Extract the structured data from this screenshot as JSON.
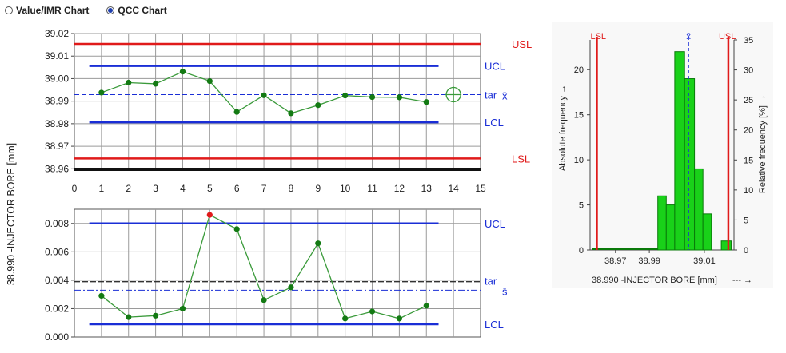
{
  "radios": [
    {
      "label": "Value/IMR Chart",
      "selected": false
    },
    {
      "label": "QCC Chart",
      "selected": true
    }
  ],
  "y_axis_label": "38.990 -INJECTOR BORE [mm]",
  "colors": {
    "spec": "#e01a1a",
    "control": "#1a2ed6",
    "data": "#3a9a3a",
    "point": "#137a13",
    "grid": "#9a9a9a",
    "bar": "#19d119",
    "alarm": "#e01a1a"
  },
  "chart_data": [
    {
      "type": "line",
      "name": "x-chart",
      "x": [
        1,
        2,
        3,
        4,
        5,
        6,
        7,
        8,
        9,
        10,
        11,
        12,
        13
      ],
      "values": [
        38.9938,
        38.9982,
        38.9977,
        39.0031,
        38.9989,
        38.9852,
        38.9926,
        38.9846,
        38.9882,
        38.9925,
        38.9918,
        38.9917,
        38.9896
      ],
      "xlim": [
        0,
        15
      ],
      "ylim": [
        38.9594,
        39.02
      ],
      "xticks": [
        "0",
        "1",
        "2",
        "3",
        "4",
        "5",
        "6",
        "7",
        "8",
        "9",
        "10",
        "11",
        "12",
        "13",
        "14",
        "15"
      ],
      "yticks": [
        "38.96",
        "38.97",
        "38.98",
        "38.99",
        "39.00",
        "39.01",
        "39.02"
      ],
      "lines": [
        {
          "label": "USL",
          "value": 39.0154,
          "kind": "spec"
        },
        {
          "label": "UCL",
          "value": 39.0056,
          "kind": "control"
        },
        {
          "label": "tar",
          "value": 38.9929,
          "kind": "target"
        },
        {
          "label": "LCL",
          "value": 38.9806,
          "kind": "control"
        },
        {
          "label": "LSL",
          "value": 38.9646,
          "kind": "spec"
        }
      ],
      "mean_symbol": "x̄",
      "target_label": "tar"
    },
    {
      "type": "line",
      "name": "s-chart",
      "x": [
        1,
        2,
        3,
        4,
        5,
        6,
        7,
        8,
        9,
        10,
        11,
        12,
        13
      ],
      "values": [
        0.0029,
        0.0014,
        0.0015,
        0.002,
        0.0086,
        0.0076,
        0.0026,
        0.0035,
        0.0066,
        0.0013,
        0.0018,
        0.0013,
        0.0022
      ],
      "alarm_points": [
        5
      ],
      "xlim": [
        0,
        15
      ],
      "ylim": [
        0,
        0.009
      ],
      "yticks": [
        "0.000",
        "0.002",
        "0.004",
        "0.006",
        "0.008"
      ],
      "lines": [
        {
          "label": "UCL",
          "value": 0.008,
          "kind": "control"
        },
        {
          "label": "tar",
          "value": 0.0039,
          "kind": "target"
        },
        {
          "label": "LCL",
          "value": 0.0009,
          "kind": "control"
        }
      ],
      "mean_value": 0.0033,
      "mean_symbol": "s̄",
      "target_label": "tar"
    },
    {
      "type": "bar",
      "name": "histogram",
      "bins": [
        {
          "x0": 38.975,
          "x1": 38.978,
          "count": 6
        },
        {
          "x0": 38.978,
          "x1": 38.981,
          "count": 5
        },
        {
          "x0": 38.981,
          "x1": 38.9845,
          "count": 22
        },
        {
          "x0": 38.9845,
          "x1": 38.988,
          "count": 19
        },
        {
          "x0": 38.988,
          "x1": 38.991,
          "count": 9
        },
        {
          "x0": 38.991,
          "x1": 38.994,
          "count": 4
        },
        {
          "x0": 38.9975,
          "x1": 39.001,
          "count": 1
        }
      ],
      "xlim": [
        38.951,
        39.002
      ],
      "xticks": [
        {
          "v": 38.96,
          "l": "38.97"
        },
        {
          "v": 38.972,
          "l": "38.99"
        },
        {
          "v": 38.9915,
          "l": "39.01"
        }
      ],
      "ylim_abs": [
        0,
        23.3
      ],
      "yticks_abs": [
        "0",
        "5",
        "10",
        "15",
        "20"
      ],
      "ylim_rel": [
        0,
        35
      ],
      "yticks_rel": [
        "0",
        "5",
        "10",
        "15",
        "20",
        "25",
        "30",
        "35"
      ],
      "lsl": 38.9534,
      "usl": 39.0,
      "mean": 38.9859,
      "lsl_label": "LSL",
      "usl_label": "USL",
      "mean_label": "x̄",
      "xlabel": "38.990 -INJECTOR BORE [mm]",
      "xlabel_suffix": "--- →",
      "ylabel_left": "Absolute frequency →",
      "ylabel_right": "Relative frequency [%] →"
    }
  ]
}
